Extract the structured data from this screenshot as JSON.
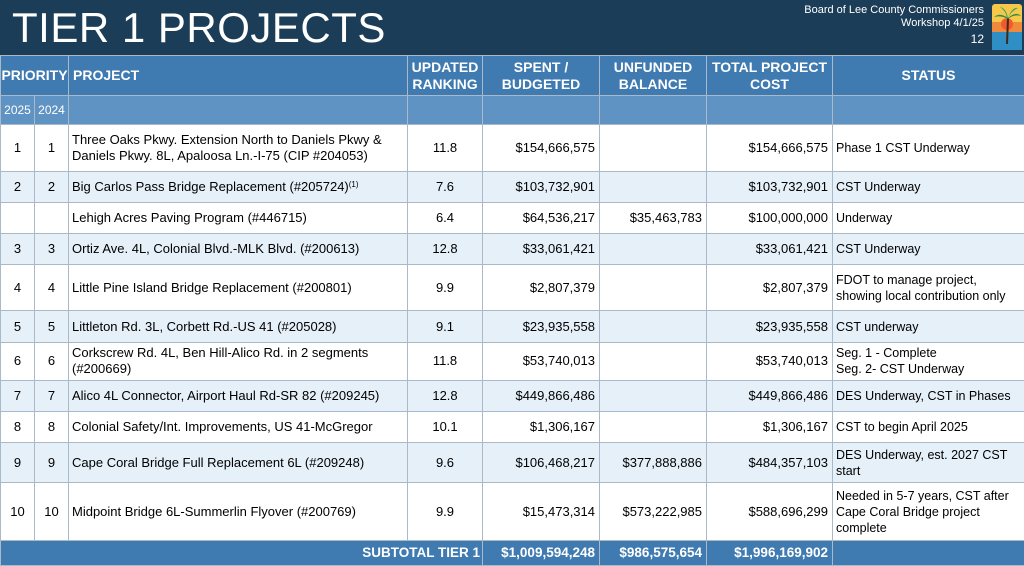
{
  "header": {
    "title": "TIER 1 PROJECTS",
    "org_line1": "Board of Lee County Commissioners",
    "org_line2": "Workshop 4/1/25",
    "slide_number": "12",
    "logo_icon": "palm-tree-sunset-logo"
  },
  "table": {
    "columns": {
      "priority": "PRIORITY",
      "project": "PROJECT",
      "ranking": "UPDATED RANKING",
      "spent": "SPENT / BUDGETED",
      "unfunded": "UNFUNDED BALANCE",
      "total": "TOTAL PROJECT COST",
      "status": "STATUS"
    },
    "priority_years": [
      "2025",
      "2024"
    ],
    "rows": [
      {
        "p2025": "1",
        "p2024": "1",
        "project": "Three Oaks Pkwy. Extension North to Daniels Pkwy & Daniels Pkwy. 8L, Apaloosa Ln.-I-75 (CIP #204053)",
        "ranking": "11.8",
        "spent": "$154,666,575",
        "unfunded": "",
        "total": "$154,666,575",
        "status": "Phase 1 CST Underway"
      },
      {
        "p2025": "2",
        "p2024": "2",
        "project": "Big Carlos Pass Bridge Replacement (#205724)",
        "footnote": "(1)",
        "ranking": "7.6",
        "spent": "$103,732,901",
        "unfunded": "",
        "total": "$103,732,901",
        "status": "CST Underway"
      },
      {
        "p2025": "",
        "p2024": "",
        "project": "Lehigh Acres Paving Program (#446715)",
        "ranking": "6.4",
        "spent": "$64,536,217",
        "unfunded": "$35,463,783",
        "total": "$100,000,000",
        "status": "Underway"
      },
      {
        "p2025": "3",
        "p2024": "3",
        "project": "Ortiz Ave. 4L, Colonial Blvd.-MLK Blvd. (#200613)",
        "ranking": "12.8",
        "spent": "$33,061,421",
        "unfunded": "",
        "total": "$33,061,421",
        "status": "CST Underway"
      },
      {
        "p2025": "4",
        "p2024": "4",
        "project": "Little Pine Island Bridge Replacement (#200801)",
        "ranking": "9.9",
        "spent": "$2,807,379",
        "unfunded": "",
        "total": "$2,807,379",
        "status": "FDOT to manage project, showing local contribution only"
      },
      {
        "p2025": "5",
        "p2024": "5",
        "project": "Littleton Rd. 3L, Corbett Rd.-US 41 (#205028)",
        "ranking": "9.1",
        "spent": "$23,935,558",
        "unfunded": "",
        "total": "$23,935,558",
        "status": "CST underway"
      },
      {
        "p2025": "6",
        "p2024": "6",
        "project": "Corkscrew Rd. 4L, Ben Hill-Alico Rd. in 2 segments (#200669)",
        "ranking": "11.8",
        "spent": "$53,740,013",
        "unfunded": "",
        "total": "$53,740,013",
        "status": "Seg. 1 - Complete",
        "status2": "Seg. 2-  CST Underway"
      },
      {
        "p2025": "7",
        "p2024": "7",
        "project": "Alico 4L Connector, Airport Haul Rd-SR 82 (#209245)",
        "ranking": "12.8",
        "spent": "$449,866,486",
        "unfunded": "",
        "total": "$449,866,486",
        "status": "DES Underway, CST in Phases"
      },
      {
        "p2025": "8",
        "p2024": "8",
        "project": "Colonial Safety/Int. Improvements, US 41-McGregor",
        "ranking": "10.1",
        "spent": "$1,306,167",
        "unfunded": "",
        "total": "$1,306,167",
        "status": "CST to begin April 2025"
      },
      {
        "p2025": "9",
        "p2024": "9",
        "project": "Cape Coral Bridge Full Replacement 6L (#209248)",
        "ranking": "9.6",
        "spent": "$106,468,217",
        "unfunded": "$377,888,886",
        "total": "$484,357,103",
        "status": "DES Underway, est. 2027 CST start"
      },
      {
        "p2025": "10",
        "p2024": "10",
        "project": "Midpoint Bridge 6L-Summerlin Flyover (#200769)",
        "ranking": "9.9",
        "spent": "$15,473,314",
        "unfunded": "$573,222,985",
        "total": "$588,696,299",
        "status": "Needed in 5-7 years, CST after Cape Coral Bridge project complete"
      }
    ],
    "subtotal": {
      "label": "SUBTOTAL TIER 1",
      "spent": "$1,009,594,248",
      "unfunded": "$986,575,654",
      "total": "$1,996,169,902"
    }
  }
}
